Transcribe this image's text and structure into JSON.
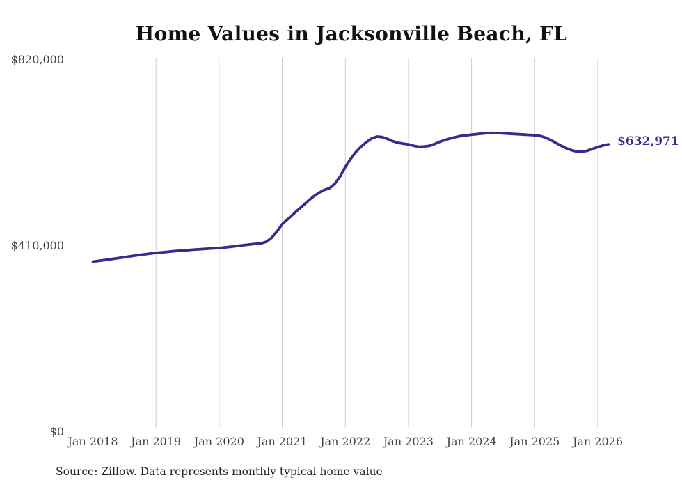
{
  "chart_data": {
    "type": "line",
    "title": "Home Values in Jacksonville Beach, FL",
    "source_note": "Source: Zillow. Data represents monthly typical home value",
    "series_name": "Monthly typical home value",
    "frequency": "monthly",
    "start_month": "Jan 2018",
    "end_month": "Mar 2026",
    "end_label": "$632,971",
    "end_value": 632971,
    "ylim": [
      0,
      820000
    ],
    "grid": "vertical-only",
    "legend": "none",
    "line_color": "#332e8e",
    "grid_color": "#cccccc",
    "tick_color": "#414141",
    "title_color": "#111111",
    "yticks": [
      {
        "value": 0,
        "label": "$0"
      },
      {
        "value": 410000,
        "label": "$410,000"
      },
      {
        "value": 820000,
        "label": "$820,000"
      }
    ],
    "xticks": [
      {
        "month_index": 0,
        "label": "Jan 2018"
      },
      {
        "month_index": 12,
        "label": "Jan 2019"
      },
      {
        "month_index": 24,
        "label": "Jan 2020"
      },
      {
        "month_index": 36,
        "label": "Jan 2021"
      },
      {
        "month_index": 48,
        "label": "Jan 2022"
      },
      {
        "month_index": 60,
        "label": "Jan 2023"
      },
      {
        "month_index": 72,
        "label": "Jan 2024"
      },
      {
        "month_index": 84,
        "label": "Jan 2025"
      },
      {
        "month_index": 96,
        "label": "Jan 2026"
      }
    ],
    "values": [
      374300,
      375800,
      377300,
      378900,
      380500,
      382200,
      384000,
      385800,
      387500,
      389100,
      390600,
      392100,
      393500,
      394600,
      395700,
      396800,
      397900,
      398900,
      399700,
      400500,
      401300,
      402100,
      402900,
      403600,
      404200,
      405400,
      406700,
      408100,
      409600,
      411000,
      412400,
      413500,
      414600,
      418000,
      427000,
      441000,
      457000,
      467500,
      477800,
      488500,
      498500,
      509000,
      518400,
      526500,
      532500,
      536400,
      546000,
      562000,
      583000,
      601000,
      616000,
      628000,
      638000,
      646000,
      650100,
      649100,
      645000,
      640000,
      636500,
      634300,
      633000,
      629800,
      627600,
      628200,
      629700,
      633800,
      638900,
      642800,
      646200,
      649100,
      651500,
      653000,
      654300,
      655500,
      656700,
      657800,
      658100,
      657800,
      657400,
      656600,
      655900,
      655200,
      654500,
      653900,
      653200,
      651500,
      648100,
      643000,
      636300,
      630000,
      624500,
      620000,
      617000,
      616500,
      619000,
      623000,
      627000,
      630500,
      632971
    ]
  }
}
